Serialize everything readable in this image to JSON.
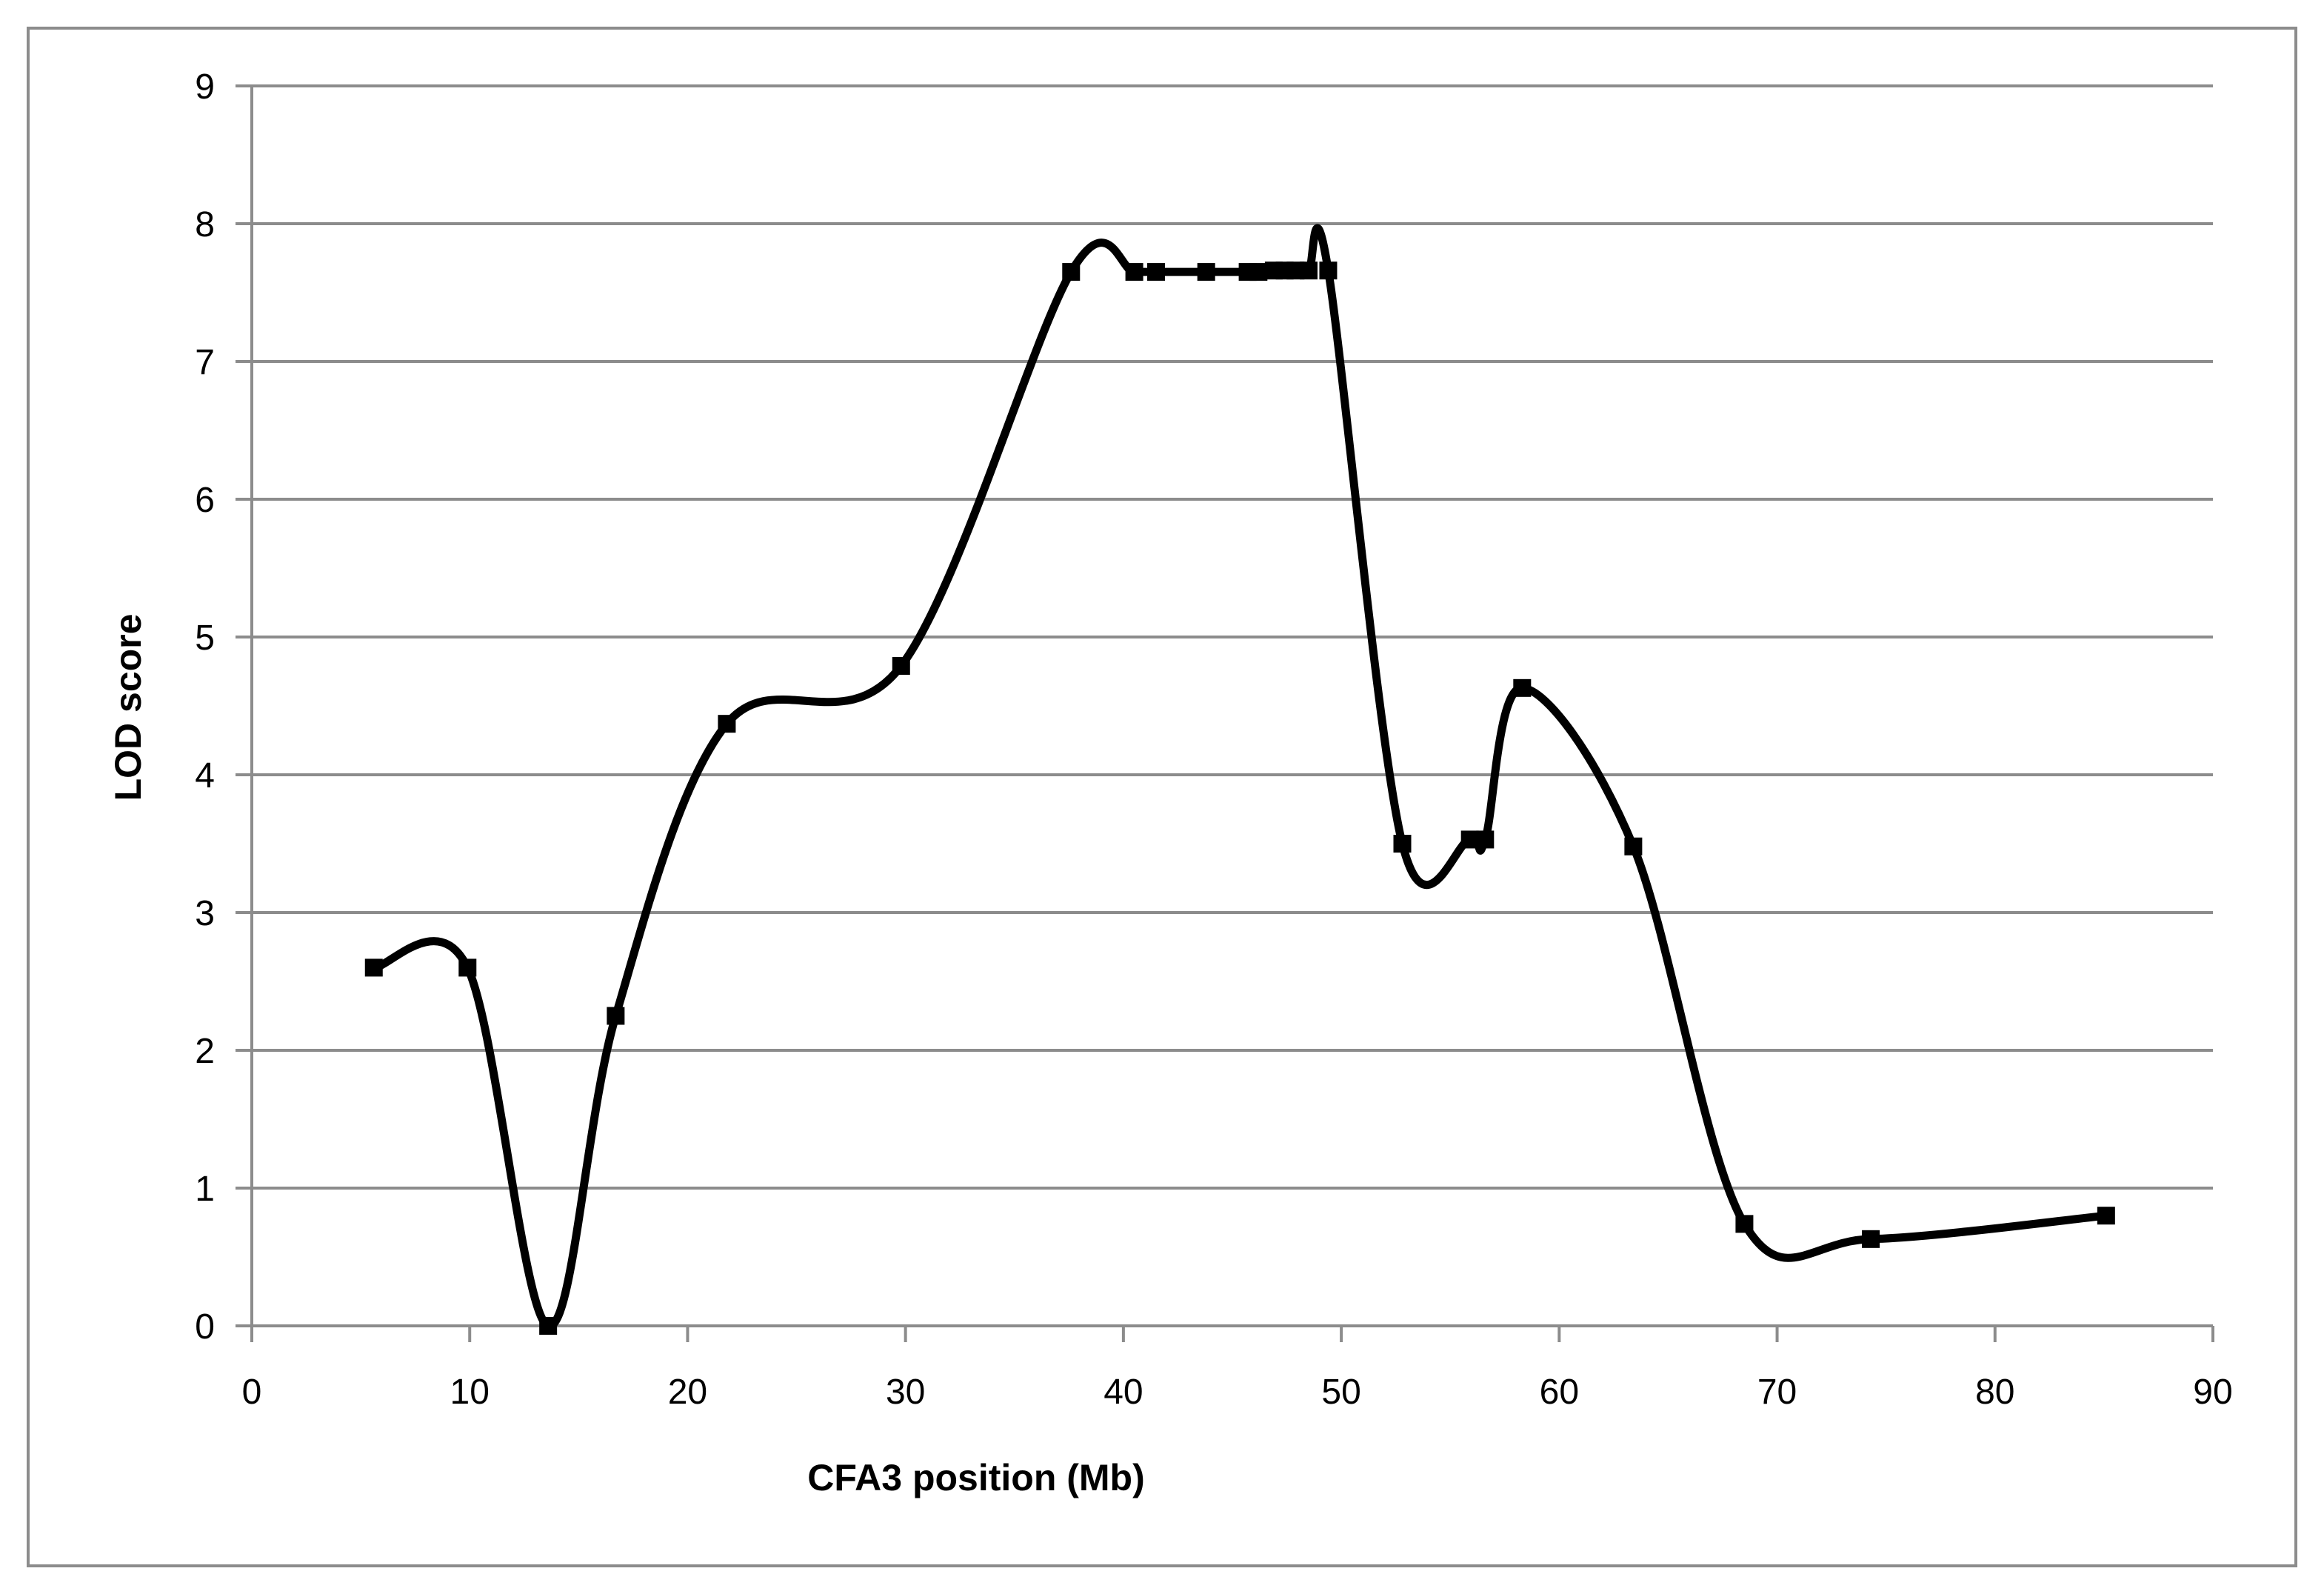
{
  "chart_data": {
    "type": "line",
    "title": "",
    "xlabel": "CFA3 position  (Mb)",
    "ylabel": "LOD score",
    "xlim": [
      0,
      90
    ],
    "ylim": [
      0,
      9
    ],
    "x_ticks": [
      0,
      10,
      20,
      30,
      40,
      50,
      60,
      70,
      80,
      90
    ],
    "y_ticks": [
      0,
      1,
      2,
      3,
      4,
      5,
      6,
      7,
      8,
      9
    ],
    "grid": "horizontal",
    "legend": "none",
    "line_color": "#000000",
    "marker": "square",
    "smooth": true,
    "series": [
      {
        "x": [
          5.6,
          9.9,
          13.6,
          16.7,
          21.8,
          29.8,
          37.6,
          40.5,
          41.5,
          43.8,
          45.7,
          46.2,
          46.9,
          47.4,
          47.9,
          48.5,
          49.4,
          52.8,
          55.9,
          56.6,
          58.3,
          63.4,
          68.5,
          74.3,
          85.1
        ],
        "y": [
          2.6,
          2.6,
          0.0,
          2.25,
          4.37,
          4.79,
          7.65,
          7.65,
          7.65,
          7.65,
          7.65,
          7.65,
          7.66,
          7.66,
          7.66,
          7.66,
          7.66,
          3.5,
          3.53,
          3.53,
          4.63,
          3.48,
          0.74,
          0.63,
          0.8
        ]
      }
    ]
  }
}
